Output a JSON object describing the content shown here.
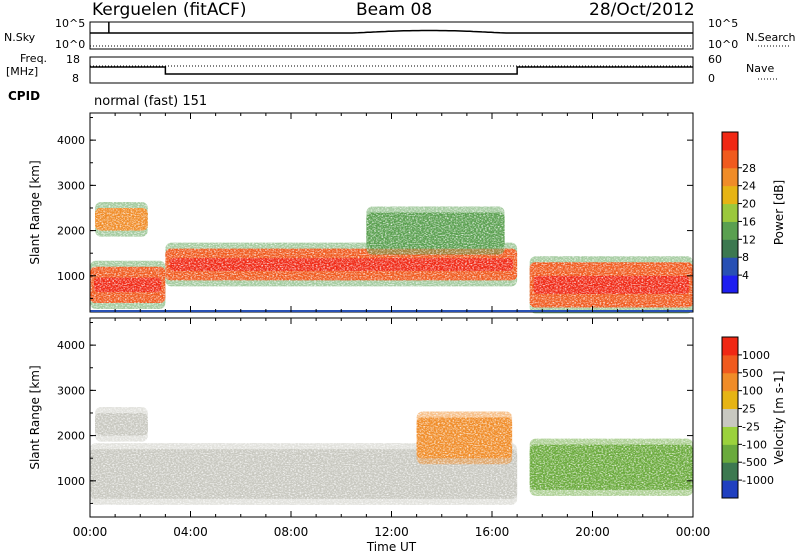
{
  "header": {
    "station": "Kerguelen (fitACF)",
    "beam": "Beam 08",
    "date": "28/Oct/2012"
  },
  "noise_panel": {
    "left_label": "N.Sky",
    "right_label": "N.Search",
    "ticks_left": [
      "10^5",
      "10^0"
    ],
    "ticks_right": [
      "10^5",
      "10^0"
    ]
  },
  "freq_panel": {
    "left_label_1": "Freq.",
    "left_label_2": "[MHz]",
    "right_label": "Nave",
    "ticks_left": [
      "18",
      "8"
    ],
    "ticks_right": [
      "60",
      "0"
    ]
  },
  "cpid": {
    "label": "CPID",
    "value": "normal (fast) 151"
  },
  "x_axis": {
    "title": "Time UT",
    "ticks": [
      "00:00",
      "04:00",
      "08:00",
      "12:00",
      "16:00",
      "20:00",
      "00:00"
    ]
  },
  "chart_data": [
    {
      "type": "heatmap",
      "title": "Power",
      "ylabel": "Slant Range [km]",
      "yticks": [
        "1000",
        "2000",
        "3000",
        "4000"
      ],
      "ylim": [
        200,
        4600
      ],
      "xlim_hours": [
        0,
        24
      ],
      "colorbar": {
        "label": "Power [dB]",
        "ticks": [
          "4",
          "8",
          "12",
          "16",
          "20",
          "24",
          "28"
        ],
        "colors": [
          "#1e1ef0",
          "#2850b4",
          "#3c7850",
          "#5aa050",
          "#9bc83c",
          "#e6b414",
          "#f08c28",
          "#f05a1e",
          "#f02814"
        ]
      },
      "echo_bands": [
        {
          "t_start": 0.0,
          "t_end": 3.0,
          "range_low": 400,
          "range_high": 1200,
          "level": "high"
        },
        {
          "t_start": 0.2,
          "t_end": 2.3,
          "range_low": 2000,
          "range_high": 2500,
          "level": "medium"
        },
        {
          "t_start": 3.0,
          "t_end": 17.0,
          "range_low": 900,
          "range_high": 1600,
          "level": "high"
        },
        {
          "t_start": 17.5,
          "t_end": 24.0,
          "range_low": 300,
          "range_high": 1300,
          "level": "high"
        },
        {
          "t_start": 11.0,
          "t_end": 16.5,
          "range_low": 1600,
          "range_high": 2400,
          "level": "low"
        }
      ]
    },
    {
      "type": "heatmap",
      "title": "Velocity",
      "ylabel": "Slant Range [km]",
      "yticks": [
        "1000",
        "2000",
        "3000",
        "4000"
      ],
      "ylim": [
        200,
        4600
      ],
      "xlim_hours": [
        0,
        24
      ],
      "colorbar": {
        "label": "Velocity [m s-1]",
        "ticks": [
          "1000",
          "500",
          "100",
          "25",
          "-25",
          "-100",
          "-500",
          "-1000"
        ],
        "colors": [
          "#2040c0",
          "#3c7850",
          "#6aaa3c",
          "#9bd23c",
          "#c8c8c0",
          "#e6b414",
          "#f08c28",
          "#f05a1e",
          "#f02814"
        ]
      },
      "echo_bands": [
        {
          "t_start": 0.0,
          "t_end": 17.0,
          "range_low": 600,
          "range_high": 1700,
          "level": "ground"
        },
        {
          "t_start": 0.2,
          "t_end": 2.3,
          "range_low": 2000,
          "range_high": 2500,
          "level": "ground"
        },
        {
          "t_start": 13.0,
          "t_end": 16.8,
          "range_low": 1500,
          "range_high": 2400,
          "level": "negative"
        },
        {
          "t_start": 17.5,
          "t_end": 24.0,
          "range_low": 800,
          "range_high": 1800,
          "level": "positive"
        }
      ]
    }
  ]
}
